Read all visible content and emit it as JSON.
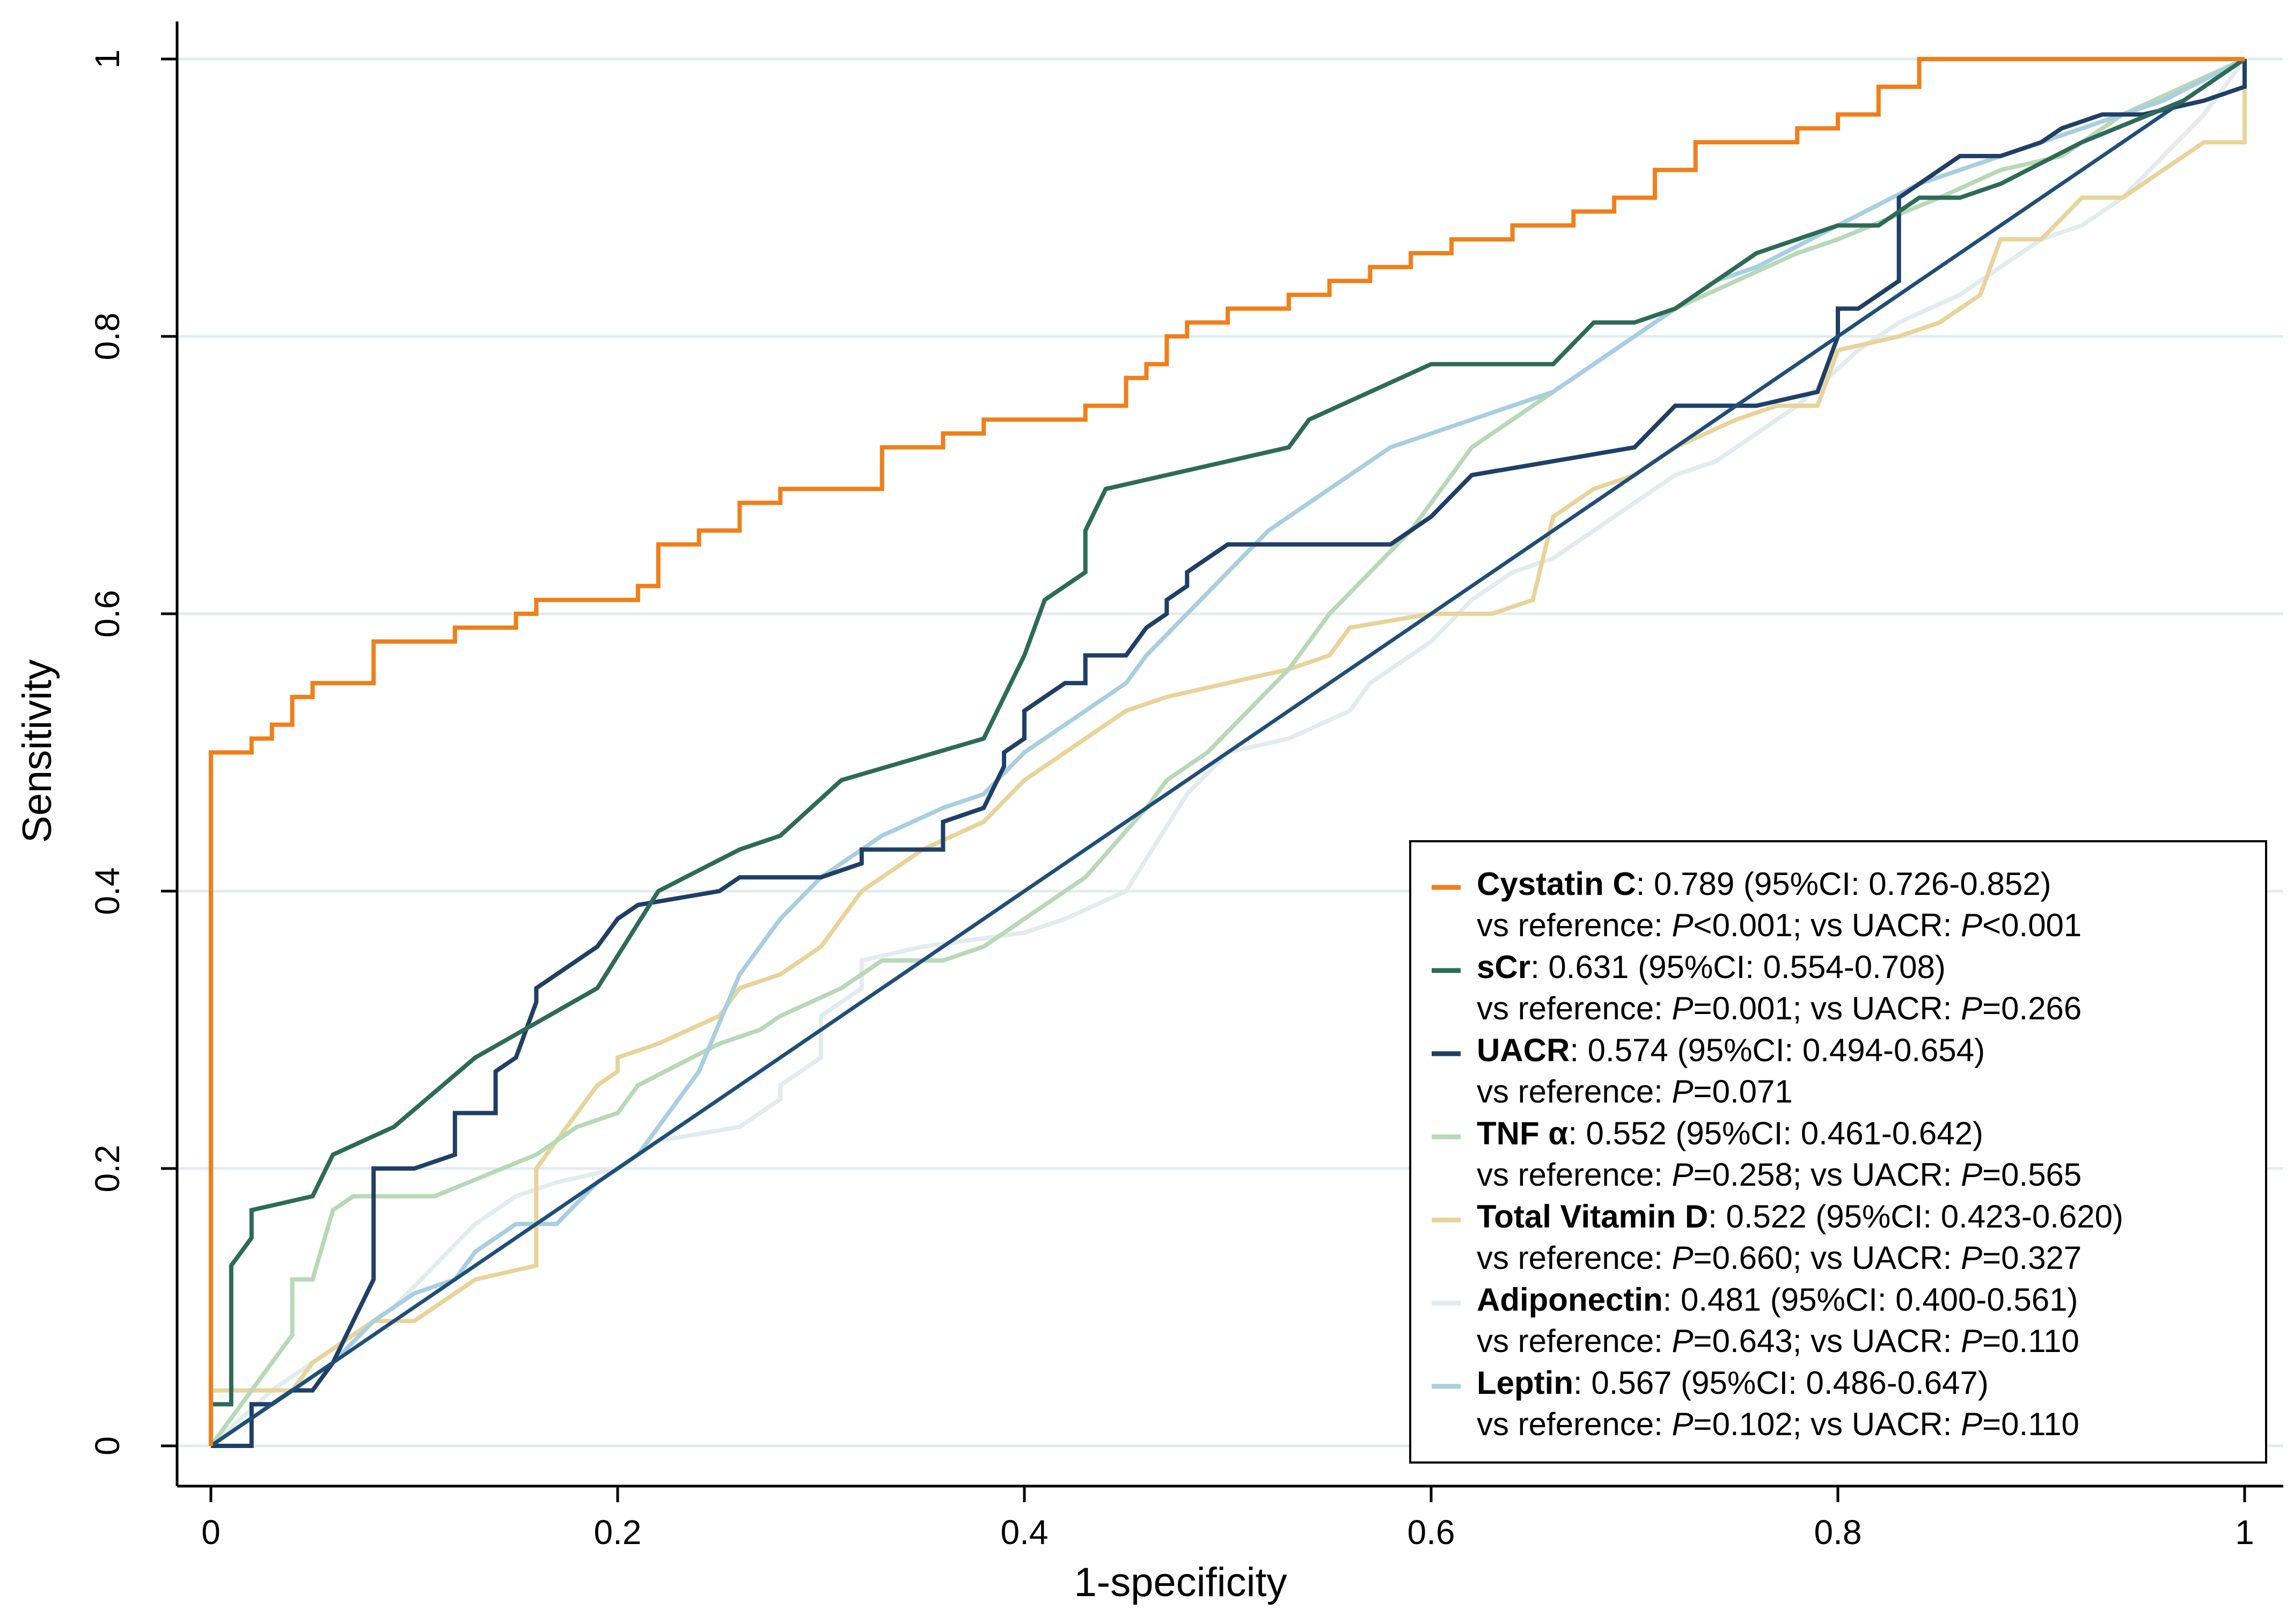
{
  "chart_data": {
    "type": "line",
    "title": "",
    "xlabel": "1-specificity",
    "ylabel": "Sensitivity",
    "xlim": [
      0,
      1
    ],
    "ylim": [
      0,
      1
    ],
    "x_ticks": [
      0,
      0.2,
      0.4,
      0.6,
      0.8,
      1
    ],
    "x_tick_labels": [
      "0",
      "0.2",
      "0.4",
      "0.6",
      "0.8",
      "1"
    ],
    "y_ticks": [
      0,
      0.2,
      0.4,
      0.6,
      0.8,
      1
    ],
    "y_tick_labels": [
      "0",
      "0.2",
      "0.4",
      "0.6",
      "0.8",
      "1"
    ],
    "grid": true,
    "legend_position": "bottom-right",
    "reference_line": {
      "name": "reference",
      "x": [
        0,
        1
      ],
      "y": [
        0,
        1
      ],
      "color": "#1f4e79"
    },
    "series": [
      {
        "name": "Cystatin C",
        "color": "#f07f1a",
        "legend_value": ": 0.789 (95%CI: 0.726-0.852)",
        "legend_line2_parts": [
          "vs reference: ",
          "P",
          "<0.001; vs UACR: ",
          "P",
          "<0.001"
        ],
        "x": [
          0,
          0,
          0.02,
          0.02,
          0.03,
          0.03,
          0.04,
          0.04,
          0.05,
          0.05,
          0.06,
          0.06,
          0.08,
          0.08,
          0.12,
          0.12,
          0.15,
          0.15,
          0.16,
          0.16,
          0.21,
          0.21,
          0.22,
          0.22,
          0.24,
          0.24,
          0.26,
          0.26,
          0.28,
          0.28,
          0.33,
          0.33,
          0.36,
          0.36,
          0.38,
          0.38,
          0.39,
          0.39,
          0.43,
          0.43,
          0.45,
          0.45,
          0.46,
          0.46,
          0.47,
          0.47,
          0.48,
          0.48,
          0.5,
          0.5,
          0.53,
          0.53,
          0.55,
          0.55,
          0.57,
          0.57,
          0.59,
          0.59,
          0.61,
          0.61,
          0.62,
          0.62,
          0.64,
          0.64,
          0.66,
          0.66,
          0.67,
          0.67,
          0.69,
          0.69,
          0.71,
          0.71,
          0.73,
          0.73,
          0.78,
          0.78,
          0.8,
          0.8,
          0.82,
          0.82,
          0.84,
          0.84,
          0.86,
          0.86,
          1
        ],
        "y": [
          0,
          0.5,
          0.5,
          0.51,
          0.51,
          0.52,
          0.52,
          0.54,
          0.54,
          0.55,
          0.55,
          0.55,
          0.55,
          0.58,
          0.58,
          0.59,
          0.59,
          0.6,
          0.6,
          0.61,
          0.61,
          0.62,
          0.62,
          0.65,
          0.65,
          0.66,
          0.66,
          0.68,
          0.68,
          0.69,
          0.69,
          0.72,
          0.72,
          0.73,
          0.73,
          0.74,
          0.74,
          0.74,
          0.74,
          0.75,
          0.75,
          0.77,
          0.77,
          0.78,
          0.78,
          0.8,
          0.8,
          0.81,
          0.81,
          0.82,
          0.82,
          0.83,
          0.83,
          0.84,
          0.84,
          0.85,
          0.85,
          0.86,
          0.86,
          0.87,
          0.87,
          0.87,
          0.87,
          0.88,
          0.88,
          0.88,
          0.88,
          0.89,
          0.89,
          0.9,
          0.9,
          0.92,
          0.92,
          0.94,
          0.94,
          0.95,
          0.95,
          0.96,
          0.96,
          0.98,
          0.98,
          1,
          1,
          1,
          1
        ]
      },
      {
        "name": "sCr",
        "color": "#2e6b57",
        "legend_value": ": 0.631 (95%CI: 0.554-0.708)",
        "legend_line2_parts": [
          "vs reference: ",
          "P",
          "=0.001; vs UACR: ",
          "P",
          "=0.266"
        ],
        "x": [
          0,
          0,
          0.01,
          0.01,
          0.02,
          0.02,
          0.05,
          0.06,
          0.09,
          0.13,
          0.19,
          0.22,
          0.26,
          0.28,
          0.31,
          0.38,
          0.4,
          0.41,
          0.42,
          0.43,
          0.43,
          0.44,
          0.47,
          0.5,
          0.53,
          0.54,
          0.6,
          0.61,
          0.66,
          0.68,
          0.7,
          0.72,
          0.74,
          0.76,
          0.8,
          0.82,
          0.84,
          0.86,
          0.88,
          0.92,
          0.97,
          1
        ],
        "y": [
          0,
          0.03,
          0.03,
          0.13,
          0.15,
          0.17,
          0.18,
          0.21,
          0.23,
          0.28,
          0.33,
          0.4,
          0.43,
          0.44,
          0.48,
          0.51,
          0.57,
          0.61,
          0.62,
          0.63,
          0.66,
          0.69,
          0.7,
          0.71,
          0.72,
          0.74,
          0.78,
          0.78,
          0.78,
          0.81,
          0.81,
          0.82,
          0.84,
          0.86,
          0.88,
          0.88,
          0.9,
          0.9,
          0.91,
          0.94,
          0.97,
          1
        ]
      },
      {
        "name": "UACR",
        "color": "#1f3f66",
        "legend_value": ": 0.574 (95%CI: 0.494-0.654)",
        "legend_line2_parts": [
          "vs reference: ",
          "P",
          "=0.071"
        ],
        "x": [
          0,
          0.02,
          0.02,
          0.03,
          0.04,
          0.05,
          0.06,
          0.07,
          0.08,
          0.08,
          0.1,
          0.12,
          0.12,
          0.14,
          0.14,
          0.15,
          0.16,
          0.16,
          0.17,
          0.18,
          0.19,
          0.2,
          0.21,
          0.25,
          0.26,
          0.3,
          0.32,
          0.32,
          0.36,
          0.36,
          0.38,
          0.39,
          0.39,
          0.4,
          0.4,
          0.41,
          0.42,
          0.43,
          0.43,
          0.45,
          0.46,
          0.47,
          0.47,
          0.48,
          0.48,
          0.49,
          0.5,
          0.52,
          0.58,
          0.6,
          0.62,
          0.66,
          0.7,
          0.72,
          0.74,
          0.76,
          0.79,
          0.8,
          0.8,
          0.81,
          0.83,
          0.83,
          0.84,
          0.86,
          0.88,
          0.9,
          0.91,
          0.93,
          0.95,
          0.98,
          1,
          1
        ],
        "y": [
          0,
          0,
          0.03,
          0.03,
          0.04,
          0.04,
          0.06,
          0.09,
          0.12,
          0.2,
          0.2,
          0.21,
          0.24,
          0.24,
          0.27,
          0.28,
          0.32,
          0.33,
          0.34,
          0.35,
          0.36,
          0.38,
          0.39,
          0.4,
          0.41,
          0.41,
          0.42,
          0.43,
          0.43,
          0.45,
          0.46,
          0.49,
          0.5,
          0.51,
          0.53,
          0.54,
          0.55,
          0.55,
          0.57,
          0.57,
          0.59,
          0.6,
          0.61,
          0.62,
          0.63,
          0.64,
          0.65,
          0.65,
          0.65,
          0.67,
          0.7,
          0.71,
          0.72,
          0.75,
          0.75,
          0.75,
          0.76,
          0.8,
          0.82,
          0.82,
          0.84,
          0.9,
          0.91,
          0.93,
          0.93,
          0.94,
          0.95,
          0.96,
          0.96,
          0.97,
          0.98,
          1
        ]
      },
      {
        "name": "TNF α",
        "color": "#b8d8b8",
        "legend_value": ": 0.552 (95%CI: 0.461-0.642)",
        "legend_line2_parts": [
          "vs reference: ",
          "P",
          "=0.258; vs UACR: ",
          "P",
          "=0.565"
        ],
        "x": [
          0,
          0.02,
          0.03,
          0.04,
          0.04,
          0.05,
          0.06,
          0.07,
          0.11,
          0.16,
          0.18,
          0.2,
          0.21,
          0.25,
          0.27,
          0.28,
          0.31,
          0.33,
          0.36,
          0.38,
          0.4,
          0.43,
          0.46,
          0.47,
          0.49,
          0.51,
          0.53,
          0.55,
          0.57,
          0.59,
          0.62,
          0.64,
          0.66,
          0.68,
          0.7,
          0.72,
          0.75,
          0.78,
          0.8,
          0.85,
          0.88,
          0.91,
          0.94,
          0.97,
          1
        ],
        "y": [
          0,
          0.04,
          0.06,
          0.08,
          0.12,
          0.12,
          0.17,
          0.18,
          0.18,
          0.21,
          0.23,
          0.24,
          0.26,
          0.29,
          0.3,
          0.31,
          0.33,
          0.35,
          0.35,
          0.36,
          0.38,
          0.41,
          0.46,
          0.48,
          0.5,
          0.53,
          0.56,
          0.6,
          0.63,
          0.66,
          0.72,
          0.74,
          0.76,
          0.78,
          0.8,
          0.82,
          0.84,
          0.86,
          0.87,
          0.9,
          0.92,
          0.93,
          0.96,
          0.98,
          1
        ]
      },
      {
        "name": "Total Vitamin D",
        "color": "#e8d49a",
        "legend_value": ": 0.522 (95%CI: 0.423-0.620)",
        "legend_line2_parts": [
          "vs reference: ",
          "P",
          "=0.660; vs UACR: ",
          "P",
          "=0.327"
        ],
        "x": [
          0,
          0,
          0.04,
          0.05,
          0.06,
          0.08,
          0.1,
          0.12,
          0.13,
          0.16,
          0.16,
          0.17,
          0.18,
          0.19,
          0.2,
          0.2,
          0.22,
          0.25,
          0.26,
          0.28,
          0.3,
          0.32,
          0.35,
          0.38,
          0.4,
          0.43,
          0.45,
          0.47,
          0.5,
          0.53,
          0.55,
          0.56,
          0.6,
          0.63,
          0.65,
          0.66,
          0.68,
          0.7,
          0.72,
          0.75,
          0.77,
          0.79,
          0.8,
          0.83,
          0.85,
          0.87,
          0.88,
          0.9,
          0.92,
          0.94,
          0.96,
          0.98,
          1,
          1
        ],
        "y": [
          0,
          0.04,
          0.04,
          0.06,
          0.07,
          0.09,
          0.09,
          0.11,
          0.12,
          0.13,
          0.2,
          0.22,
          0.24,
          0.26,
          0.27,
          0.28,
          0.29,
          0.31,
          0.33,
          0.34,
          0.36,
          0.4,
          0.43,
          0.45,
          0.48,
          0.51,
          0.53,
          0.54,
          0.55,
          0.56,
          0.57,
          0.59,
          0.6,
          0.6,
          0.61,
          0.67,
          0.69,
          0.7,
          0.72,
          0.74,
          0.75,
          0.75,
          0.79,
          0.8,
          0.81,
          0.83,
          0.87,
          0.87,
          0.9,
          0.9,
          0.92,
          0.94,
          0.94,
          1
        ]
      },
      {
        "name": "Adiponectin",
        "color": "#e2ebee",
        "legend_value": ": 0.481 (95%CI: 0.400-0.561)",
        "legend_line2_parts": [
          "vs reference: ",
          "P",
          "=0.643; vs UACR: ",
          "P",
          "=0.110"
        ],
        "x": [
          0,
          0.03,
          0.05,
          0.07,
          0.09,
          0.11,
          0.13,
          0.15,
          0.17,
          0.2,
          0.22,
          0.26,
          0.28,
          0.28,
          0.3,
          0.3,
          0.32,
          0.32,
          0.35,
          0.4,
          0.42,
          0.45,
          0.48,
          0.5,
          0.53,
          0.56,
          0.57,
          0.58,
          0.6,
          0.62,
          0.64,
          0.66,
          0.68,
          0.7,
          0.72,
          0.74,
          0.76,
          0.78,
          0.81,
          0.83,
          0.86,
          0.88,
          0.9,
          0.92,
          0.94,
          0.96,
          0.98,
          1
        ],
        "y": [
          0,
          0.04,
          0.06,
          0.08,
          0.1,
          0.13,
          0.16,
          0.18,
          0.19,
          0.2,
          0.22,
          0.23,
          0.25,
          0.26,
          0.28,
          0.31,
          0.33,
          0.35,
          0.36,
          0.37,
          0.38,
          0.4,
          0.47,
          0.5,
          0.51,
          0.53,
          0.55,
          0.56,
          0.58,
          0.61,
          0.63,
          0.64,
          0.66,
          0.68,
          0.7,
          0.71,
          0.73,
          0.75,
          0.79,
          0.81,
          0.83,
          0.85,
          0.87,
          0.88,
          0.9,
          0.93,
          0.96,
          1
        ]
      },
      {
        "name": "Leptin",
        "color": "#a8cfe0",
        "legend_value": ": 0.567 (95%CI: 0.486-0.647)",
        "legend_line2_parts": [
          "vs reference: ",
          "P",
          "=0.102; vs UACR: ",
          "P",
          "=0.110"
        ],
        "x": [
          0,
          0.02,
          0.04,
          0.06,
          0.08,
          0.1,
          0.12,
          0.13,
          0.15,
          0.17,
          0.19,
          0.2,
          0.21,
          0.22,
          0.24,
          0.26,
          0.28,
          0.3,
          0.31,
          0.33,
          0.36,
          0.38,
          0.4,
          0.41,
          0.43,
          0.45,
          0.46,
          0.48,
          0.5,
          0.52,
          0.54,
          0.56,
          0.58,
          0.62,
          0.66,
          0.68,
          0.7,
          0.72,
          0.74,
          0.76,
          0.8,
          0.84,
          0.88,
          0.92,
          0.96,
          1
        ],
        "y": [
          0,
          0.02,
          0.04,
          0.06,
          0.09,
          0.11,
          0.12,
          0.14,
          0.16,
          0.16,
          0.19,
          0.2,
          0.21,
          0.23,
          0.27,
          0.34,
          0.38,
          0.41,
          0.42,
          0.44,
          0.46,
          0.47,
          0.5,
          0.51,
          0.53,
          0.55,
          0.57,
          0.6,
          0.63,
          0.66,
          0.68,
          0.7,
          0.72,
          0.74,
          0.76,
          0.78,
          0.8,
          0.82,
          0.84,
          0.85,
          0.88,
          0.91,
          0.93,
          0.95,
          0.97,
          1
        ]
      }
    ]
  }
}
